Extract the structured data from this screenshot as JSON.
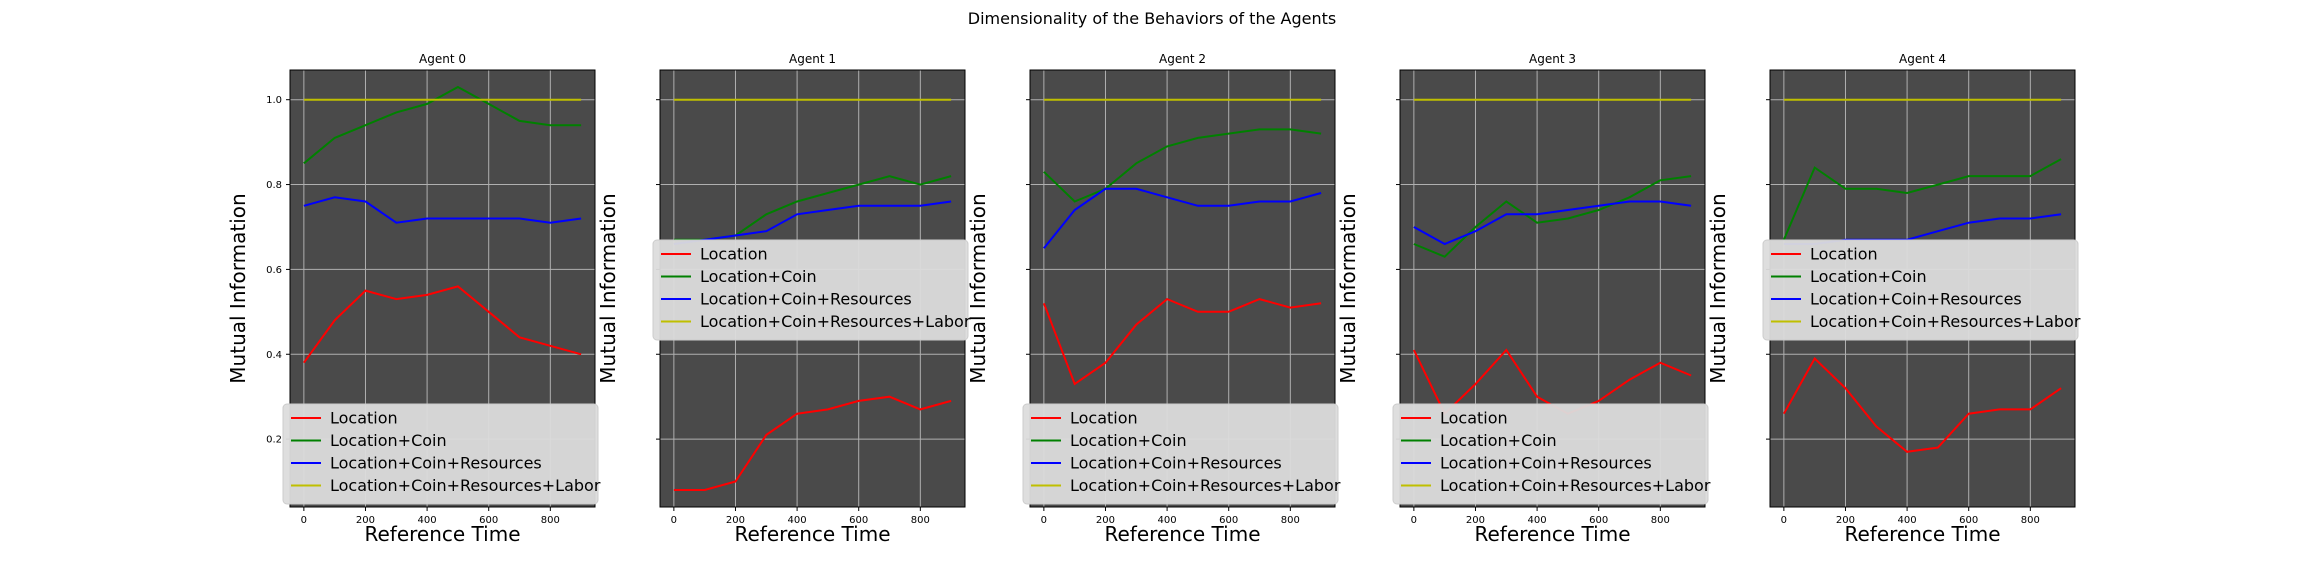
{
  "figure_title": "Dimensionality of the Behaviors of the Agents",
  "colors": {
    "plot_background": "#4a4a4a",
    "grid": "#b0b0b0",
    "Location": "#ff0000",
    "Location+Coin": "#008000",
    "Location+Coin+Resources": "#0000ff",
    "Location+Coin+Resources+Labor": "#bfbf00",
    "legend_background": "#dcdcdc"
  },
  "chart_data": [
    {
      "type": "line",
      "title": "Agent 0",
      "xlabel": "Reference Time",
      "ylabel": "Mutual Information",
      "x": [
        0,
        100,
        200,
        300,
        400,
        500,
        600,
        700,
        800,
        900
      ],
      "xticks": [
        "0",
        "200",
        "400",
        "600",
        "800"
      ],
      "yticks": [
        "0.2",
        "0.4",
        "0.6",
        "0.8",
        "1.0"
      ],
      "xlim": [
        -45,
        945
      ],
      "ylim": [
        0.04,
        1.07
      ],
      "grid": true,
      "legend_position": "lower center",
      "series": [
        {
          "name": "Location",
          "values": [
            0.38,
            0.48,
            0.55,
            0.53,
            0.54,
            0.56,
            0.5,
            0.44,
            0.42,
            0.4
          ]
        },
        {
          "name": "Location+Coin",
          "values": [
            0.85,
            0.91,
            0.94,
            0.97,
            0.99,
            1.03,
            0.99,
            0.95,
            0.94,
            0.94
          ]
        },
        {
          "name": "Location+Coin+Resources",
          "values": [
            0.75,
            0.77,
            0.76,
            0.71,
            0.72,
            0.72,
            0.72,
            0.72,
            0.71,
            0.72
          ]
        },
        {
          "name": "Location+Coin+Resources+Labor",
          "values": [
            1.0,
            1.0,
            1.0,
            1.0,
            1.0,
            1.0,
            1.0,
            1.0,
            1.0,
            1.0
          ]
        }
      ]
    },
    {
      "type": "line",
      "title": "Agent 1",
      "xlabel": "Reference Time",
      "ylabel": "Mutual Information",
      "x": [
        0,
        100,
        200,
        300,
        400,
        500,
        600,
        700,
        800,
        900
      ],
      "xticks": [
        "0",
        "200",
        "400",
        "600",
        "800"
      ],
      "yticks": [
        "0.2",
        "0.4",
        "0.6",
        "0.8",
        "1.0"
      ],
      "xlim": [
        -45,
        945
      ],
      "ylim": [
        0.04,
        1.07
      ],
      "grid": true,
      "legend_position": "center",
      "series": [
        {
          "name": "Location",
          "values": [
            0.08,
            0.08,
            0.1,
            0.21,
            0.26,
            0.27,
            0.29,
            0.3,
            0.27,
            0.29
          ]
        },
        {
          "name": "Location+Coin",
          "values": [
            0.67,
            0.67,
            0.68,
            0.73,
            0.76,
            0.78,
            0.8,
            0.82,
            0.8,
            0.82
          ]
        },
        {
          "name": "Location+Coin+Resources",
          "values": [
            0.66,
            0.67,
            0.68,
            0.69,
            0.73,
            0.74,
            0.75,
            0.75,
            0.75,
            0.76
          ]
        },
        {
          "name": "Location+Coin+Resources+Labor",
          "values": [
            1.0,
            1.0,
            1.0,
            1.0,
            1.0,
            1.0,
            1.0,
            1.0,
            1.0,
            1.0
          ]
        }
      ]
    },
    {
      "type": "line",
      "title": "Agent 2",
      "xlabel": "Reference Time",
      "ylabel": "Mutual Information",
      "x": [
        0,
        100,
        200,
        300,
        400,
        500,
        600,
        700,
        800,
        900
      ],
      "xticks": [
        "0",
        "200",
        "400",
        "600",
        "800"
      ],
      "yticks": [
        "0.2",
        "0.4",
        "0.6",
        "0.8",
        "1.0"
      ],
      "xlim": [
        -45,
        945
      ],
      "ylim": [
        0.04,
        1.07
      ],
      "grid": true,
      "legend_position": "lower center",
      "series": [
        {
          "name": "Location",
          "values": [
            0.52,
            0.33,
            0.38,
            0.47,
            0.53,
            0.5,
            0.5,
            0.53,
            0.51,
            0.52
          ]
        },
        {
          "name": "Location+Coin",
          "values": [
            0.83,
            0.76,
            0.79,
            0.85,
            0.89,
            0.91,
            0.92,
            0.93,
            0.93,
            0.92
          ]
        },
        {
          "name": "Location+Coin+Resources",
          "values": [
            0.65,
            0.74,
            0.79,
            0.79,
            0.77,
            0.75,
            0.75,
            0.76,
            0.76,
            0.78
          ]
        },
        {
          "name": "Location+Coin+Resources+Labor",
          "values": [
            1.0,
            1.0,
            1.0,
            1.0,
            1.0,
            1.0,
            1.0,
            1.0,
            1.0,
            1.0
          ]
        }
      ]
    },
    {
      "type": "line",
      "title": "Agent 3",
      "xlabel": "Reference Time",
      "ylabel": "Mutual Information",
      "x": [
        0,
        100,
        200,
        300,
        400,
        500,
        600,
        700,
        800,
        900
      ],
      "xticks": [
        "0",
        "200",
        "400",
        "600",
        "800"
      ],
      "yticks": [
        "0.2",
        "0.4",
        "0.6",
        "0.8",
        "1.0"
      ],
      "xlim": [
        -45,
        945
      ],
      "ylim": [
        0.04,
        1.07
      ],
      "grid": true,
      "legend_position": "lower center",
      "series": [
        {
          "name": "Location",
          "values": [
            0.41,
            0.26,
            0.33,
            0.41,
            0.3,
            0.26,
            0.29,
            0.34,
            0.38,
            0.35
          ]
        },
        {
          "name": "Location+Coin",
          "values": [
            0.66,
            0.63,
            0.7,
            0.76,
            0.71,
            0.72,
            0.74,
            0.77,
            0.81,
            0.82
          ]
        },
        {
          "name": "Location+Coin+Resources",
          "values": [
            0.7,
            0.66,
            0.69,
            0.73,
            0.73,
            0.74,
            0.75,
            0.76,
            0.76,
            0.75
          ]
        },
        {
          "name": "Location+Coin+Resources+Labor",
          "values": [
            1.0,
            1.0,
            1.0,
            1.0,
            1.0,
            1.0,
            1.0,
            1.0,
            1.0,
            1.0
          ]
        }
      ]
    },
    {
      "type": "line",
      "title": "Agent 4",
      "xlabel": "Reference Time",
      "ylabel": "Mutual Information",
      "x": [
        0,
        100,
        200,
        300,
        400,
        500,
        600,
        700,
        800,
        900
      ],
      "xticks": [
        "0",
        "200",
        "400",
        "600",
        "800"
      ],
      "yticks": [
        "0.2",
        "0.4",
        "0.6",
        "0.8",
        "1.0"
      ],
      "xlim": [
        -45,
        945
      ],
      "ylim": [
        0.04,
        1.07
      ],
      "grid": true,
      "legend_position": "center",
      "series": [
        {
          "name": "Location",
          "values": [
            0.26,
            0.39,
            0.32,
            0.23,
            0.17,
            0.18,
            0.26,
            0.27,
            0.27,
            0.32
          ]
        },
        {
          "name": "Location+Coin",
          "values": [
            0.67,
            0.84,
            0.79,
            0.79,
            0.78,
            0.8,
            0.82,
            0.82,
            0.82,
            0.86
          ]
        },
        {
          "name": "Location+Coin+Resources",
          "values": [
            0.66,
            0.66,
            0.67,
            0.67,
            0.67,
            0.69,
            0.71,
            0.72,
            0.72,
            0.73
          ]
        },
        {
          "name": "Location+Coin+Resources+Labor",
          "values": [
            1.0,
            1.0,
            1.0,
            1.0,
            1.0,
            1.0,
            1.0,
            1.0,
            1.0,
            1.0
          ]
        }
      ]
    }
  ]
}
